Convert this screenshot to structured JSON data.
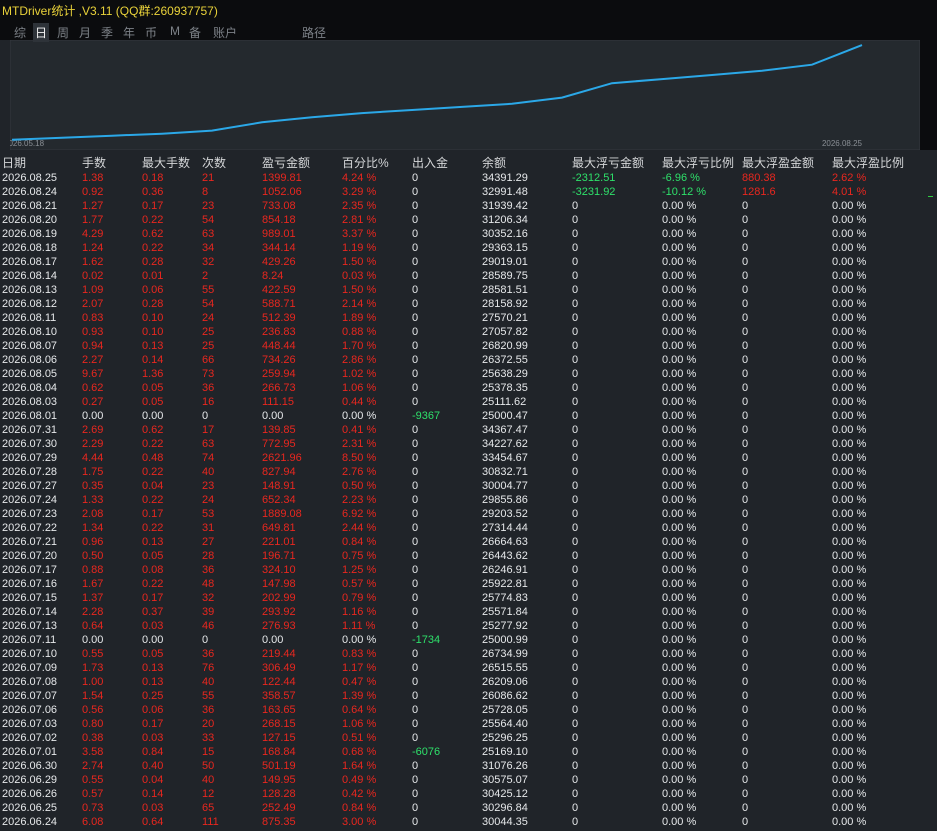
{
  "header": {
    "title": "MTDriver统计 ,V3.11 (QQ群:260937757)",
    "tabs": [
      "综",
      "日",
      "周",
      "月",
      "季",
      "年",
      "币",
      "M",
      "备",
      "账户",
      "路径"
    ],
    "active_tab": 1
  },
  "chart": {
    "type": "line",
    "color": "#2ba8e8",
    "ylim": [
      0,
      100
    ],
    "values": [
      5,
      7,
      9,
      11,
      14,
      22,
      27,
      31,
      34,
      37,
      40,
      46,
      60,
      64,
      68,
      72,
      78,
      97
    ],
    "start_label": "2026.05.18",
    "end_label": "2026.08.25"
  },
  "table": {
    "columns": [
      "日期",
      "手数",
      "最大手数",
      "次数",
      "盈亏金额",
      "百分比%",
      "出入金",
      "余额",
      "最大浮亏金额",
      "最大浮亏比例",
      "最大浮盈金额",
      "最大浮盈比例"
    ],
    "rows": [
      [
        "2026.08.25",
        "1.38",
        "0.18",
        "21",
        "1399.81",
        "4.24 %",
        "0",
        "34391.29",
        "-2312.51",
        "-6.96 %",
        "880.38",
        "2.62 %"
      ],
      [
        "2026.08.24",
        "0.92",
        "0.36",
        "8",
        "1052.06",
        "3.29 %",
        "0",
        "32991.48",
        "-3231.92",
        "-10.12 %",
        "1281.6",
        "4.01 %"
      ],
      [
        "2026.08.21",
        "1.27",
        "0.17",
        "23",
        "733.08",
        "2.35 %",
        "0",
        "31939.42",
        "0",
        "0.00 %",
        "0",
        "0.00 %"
      ],
      [
        "2026.08.20",
        "1.77",
        "0.22",
        "54",
        "854.18",
        "2.81 %",
        "0",
        "31206.34",
        "0",
        "0.00 %",
        "0",
        "0.00 %"
      ],
      [
        "2026.08.19",
        "4.29",
        "0.62",
        "63",
        "989.01",
        "3.37 %",
        "0",
        "30352.16",
        "0",
        "0.00 %",
        "0",
        "0.00 %"
      ],
      [
        "2026.08.18",
        "1.24",
        "0.22",
        "34",
        "344.14",
        "1.19 %",
        "0",
        "29363.15",
        "0",
        "0.00 %",
        "0",
        "0.00 %"
      ],
      [
        "2026.08.17",
        "1.62",
        "0.28",
        "32",
        "429.26",
        "1.50 %",
        "0",
        "29019.01",
        "0",
        "0.00 %",
        "0",
        "0.00 %"
      ],
      [
        "2026.08.14",
        "0.02",
        "0.01",
        "2",
        "8.24",
        "0.03 %",
        "0",
        "28589.75",
        "0",
        "0.00 %",
        "0",
        "0.00 %"
      ],
      [
        "2026.08.13",
        "1.09",
        "0.06",
        "55",
        "422.59",
        "1.50 %",
        "0",
        "28581.51",
        "0",
        "0.00 %",
        "0",
        "0.00 %"
      ],
      [
        "2026.08.12",
        "2.07",
        "0.28",
        "54",
        "588.71",
        "2.14 %",
        "0",
        "28158.92",
        "0",
        "0.00 %",
        "0",
        "0.00 %"
      ],
      [
        "2026.08.11",
        "0.83",
        "0.10",
        "24",
        "512.39",
        "1.89 %",
        "0",
        "27570.21",
        "0",
        "0.00 %",
        "0",
        "0.00 %"
      ],
      [
        "2026.08.10",
        "0.93",
        "0.10",
        "25",
        "236.83",
        "0.88 %",
        "0",
        "27057.82",
        "0",
        "0.00 %",
        "0",
        "0.00 %"
      ],
      [
        "2026.08.07",
        "0.94",
        "0.13",
        "25",
        "448.44",
        "1.70 %",
        "0",
        "26820.99",
        "0",
        "0.00 %",
        "0",
        "0.00 %"
      ],
      [
        "2026.08.06",
        "2.27",
        "0.14",
        "66",
        "734.26",
        "2.86 %",
        "0",
        "26372.55",
        "0",
        "0.00 %",
        "0",
        "0.00 %"
      ],
      [
        "2026.08.05",
        "9.67",
        "1.36",
        "73",
        "259.94",
        "1.02 %",
        "0",
        "25638.29",
        "0",
        "0.00 %",
        "0",
        "0.00 %"
      ],
      [
        "2026.08.04",
        "0.62",
        "0.05",
        "36",
        "266.73",
        "1.06 %",
        "0",
        "25378.35",
        "0",
        "0.00 %",
        "0",
        "0.00 %"
      ],
      [
        "2026.08.03",
        "0.27",
        "0.05",
        "16",
        "111.15",
        "0.44 %",
        "0",
        "25111.62",
        "0",
        "0.00 %",
        "0",
        "0.00 %"
      ],
      [
        "2026.08.01",
        "0.00",
        "0.00",
        "0",
        "0.00",
        "0.00 %",
        "-9367",
        "25000.47",
        "0",
        "0.00 %",
        "0",
        "0.00 %"
      ],
      [
        "2026.07.31",
        "2.69",
        "0.62",
        "17",
        "139.85",
        "0.41 %",
        "0",
        "34367.47",
        "0",
        "0.00 %",
        "0",
        "0.00 %"
      ],
      [
        "2026.07.30",
        "2.29",
        "0.22",
        "63",
        "772.95",
        "2.31 %",
        "0",
        "34227.62",
        "0",
        "0.00 %",
        "0",
        "0.00 %"
      ],
      [
        "2026.07.29",
        "4.44",
        "0.48",
        "74",
        "2621.96",
        "8.50 %",
        "0",
        "33454.67",
        "0",
        "0.00 %",
        "0",
        "0.00 %"
      ],
      [
        "2026.07.28",
        "1.75",
        "0.22",
        "40",
        "827.94",
        "2.76 %",
        "0",
        "30832.71",
        "0",
        "0.00 %",
        "0",
        "0.00 %"
      ],
      [
        "2026.07.27",
        "0.35",
        "0.04",
        "23",
        "148.91",
        "0.50 %",
        "0",
        "30004.77",
        "0",
        "0.00 %",
        "0",
        "0.00 %"
      ],
      [
        "2026.07.24",
        "1.33",
        "0.22",
        "24",
        "652.34",
        "2.23 %",
        "0",
        "29855.86",
        "0",
        "0.00 %",
        "0",
        "0.00 %"
      ],
      [
        "2026.07.23",
        "2.08",
        "0.17",
        "53",
        "1889.08",
        "6.92 %",
        "0",
        "29203.52",
        "0",
        "0.00 %",
        "0",
        "0.00 %"
      ],
      [
        "2026.07.22",
        "1.34",
        "0.22",
        "31",
        "649.81",
        "2.44 %",
        "0",
        "27314.44",
        "0",
        "0.00 %",
        "0",
        "0.00 %"
      ],
      [
        "2026.07.21",
        "0.96",
        "0.13",
        "27",
        "221.01",
        "0.84 %",
        "0",
        "26664.63",
        "0",
        "0.00 %",
        "0",
        "0.00 %"
      ],
      [
        "2026.07.20",
        "0.50",
        "0.05",
        "28",
        "196.71",
        "0.75 %",
        "0",
        "26443.62",
        "0",
        "0.00 %",
        "0",
        "0.00 %"
      ],
      [
        "2026.07.17",
        "0.88",
        "0.08",
        "36",
        "324.10",
        "1.25 %",
        "0",
        "26246.91",
        "0",
        "0.00 %",
        "0",
        "0.00 %"
      ],
      [
        "2026.07.16",
        "1.67",
        "0.22",
        "48",
        "147.98",
        "0.57 %",
        "0",
        "25922.81",
        "0",
        "0.00 %",
        "0",
        "0.00 %"
      ],
      [
        "2026.07.15",
        "1.37",
        "0.17",
        "32",
        "202.99",
        "0.79 %",
        "0",
        "25774.83",
        "0",
        "0.00 %",
        "0",
        "0.00 %"
      ],
      [
        "2026.07.14",
        "2.28",
        "0.37",
        "39",
        "293.92",
        "1.16 %",
        "0",
        "25571.84",
        "0",
        "0.00 %",
        "0",
        "0.00 %"
      ],
      [
        "2026.07.13",
        "0.64",
        "0.03",
        "46",
        "276.93",
        "1.11 %",
        "0",
        "25277.92",
        "0",
        "0.00 %",
        "0",
        "0.00 %"
      ],
      [
        "2026.07.11",
        "0.00",
        "0.00",
        "0",
        "0.00",
        "0.00 %",
        "-1734",
        "25000.99",
        "0",
        "0.00 %",
        "0",
        "0.00 %"
      ],
      [
        "2026.07.10",
        "0.55",
        "0.05",
        "36",
        "219.44",
        "0.83 %",
        "0",
        "26734.99",
        "0",
        "0.00 %",
        "0",
        "0.00 %"
      ],
      [
        "2026.07.09",
        "1.73",
        "0.13",
        "76",
        "306.49",
        "1.17 %",
        "0",
        "26515.55",
        "0",
        "0.00 %",
        "0",
        "0.00 %"
      ],
      [
        "2026.07.08",
        "1.00",
        "0.13",
        "40",
        "122.44",
        "0.47 %",
        "0",
        "26209.06",
        "0",
        "0.00 %",
        "0",
        "0.00 %"
      ],
      [
        "2026.07.07",
        "1.54",
        "0.25",
        "55",
        "358.57",
        "1.39 %",
        "0",
        "26086.62",
        "0",
        "0.00 %",
        "0",
        "0.00 %"
      ],
      [
        "2026.07.06",
        "0.56",
        "0.06",
        "36",
        "163.65",
        "0.64 %",
        "0",
        "25728.05",
        "0",
        "0.00 %",
        "0",
        "0.00 %"
      ],
      [
        "2026.07.03",
        "0.80",
        "0.17",
        "20",
        "268.15",
        "1.06 %",
        "0",
        "25564.40",
        "0",
        "0.00 %",
        "0",
        "0.00 %"
      ],
      [
        "2026.07.02",
        "0.38",
        "0.03",
        "33",
        "127.15",
        "0.51 %",
        "0",
        "25296.25",
        "0",
        "0.00 %",
        "0",
        "0.00 %"
      ],
      [
        "2026.07.01",
        "3.58",
        "0.84",
        "15",
        "168.84",
        "0.68 %",
        "-6076",
        "25169.10",
        "0",
        "0.00 %",
        "0",
        "0.00 %"
      ],
      [
        "2026.06.30",
        "2.74",
        "0.40",
        "50",
        "501.19",
        "1.64 %",
        "0",
        "31076.26",
        "0",
        "0.00 %",
        "0",
        "0.00 %"
      ],
      [
        "2026.06.29",
        "0.55",
        "0.04",
        "40",
        "149.95",
        "0.49 %",
        "0",
        "30575.07",
        "0",
        "0.00 %",
        "0",
        "0.00 %"
      ],
      [
        "2026.06.26",
        "0.57",
        "0.14",
        "12",
        "128.28",
        "0.42 %",
        "0",
        "30425.12",
        "0",
        "0.00 %",
        "0",
        "0.00 %"
      ],
      [
        "2026.06.25",
        "0.73",
        "0.03",
        "65",
        "252.49",
        "0.84 %",
        "0",
        "30296.84",
        "0",
        "0.00 %",
        "0",
        "0.00 %"
      ],
      [
        "2026.06.24",
        "6.08",
        "0.64",
        "111",
        "875.35",
        "3.00 %",
        "0",
        "30044.35",
        "0",
        "0.00 %",
        "0",
        "0.00 %"
      ]
    ]
  }
}
